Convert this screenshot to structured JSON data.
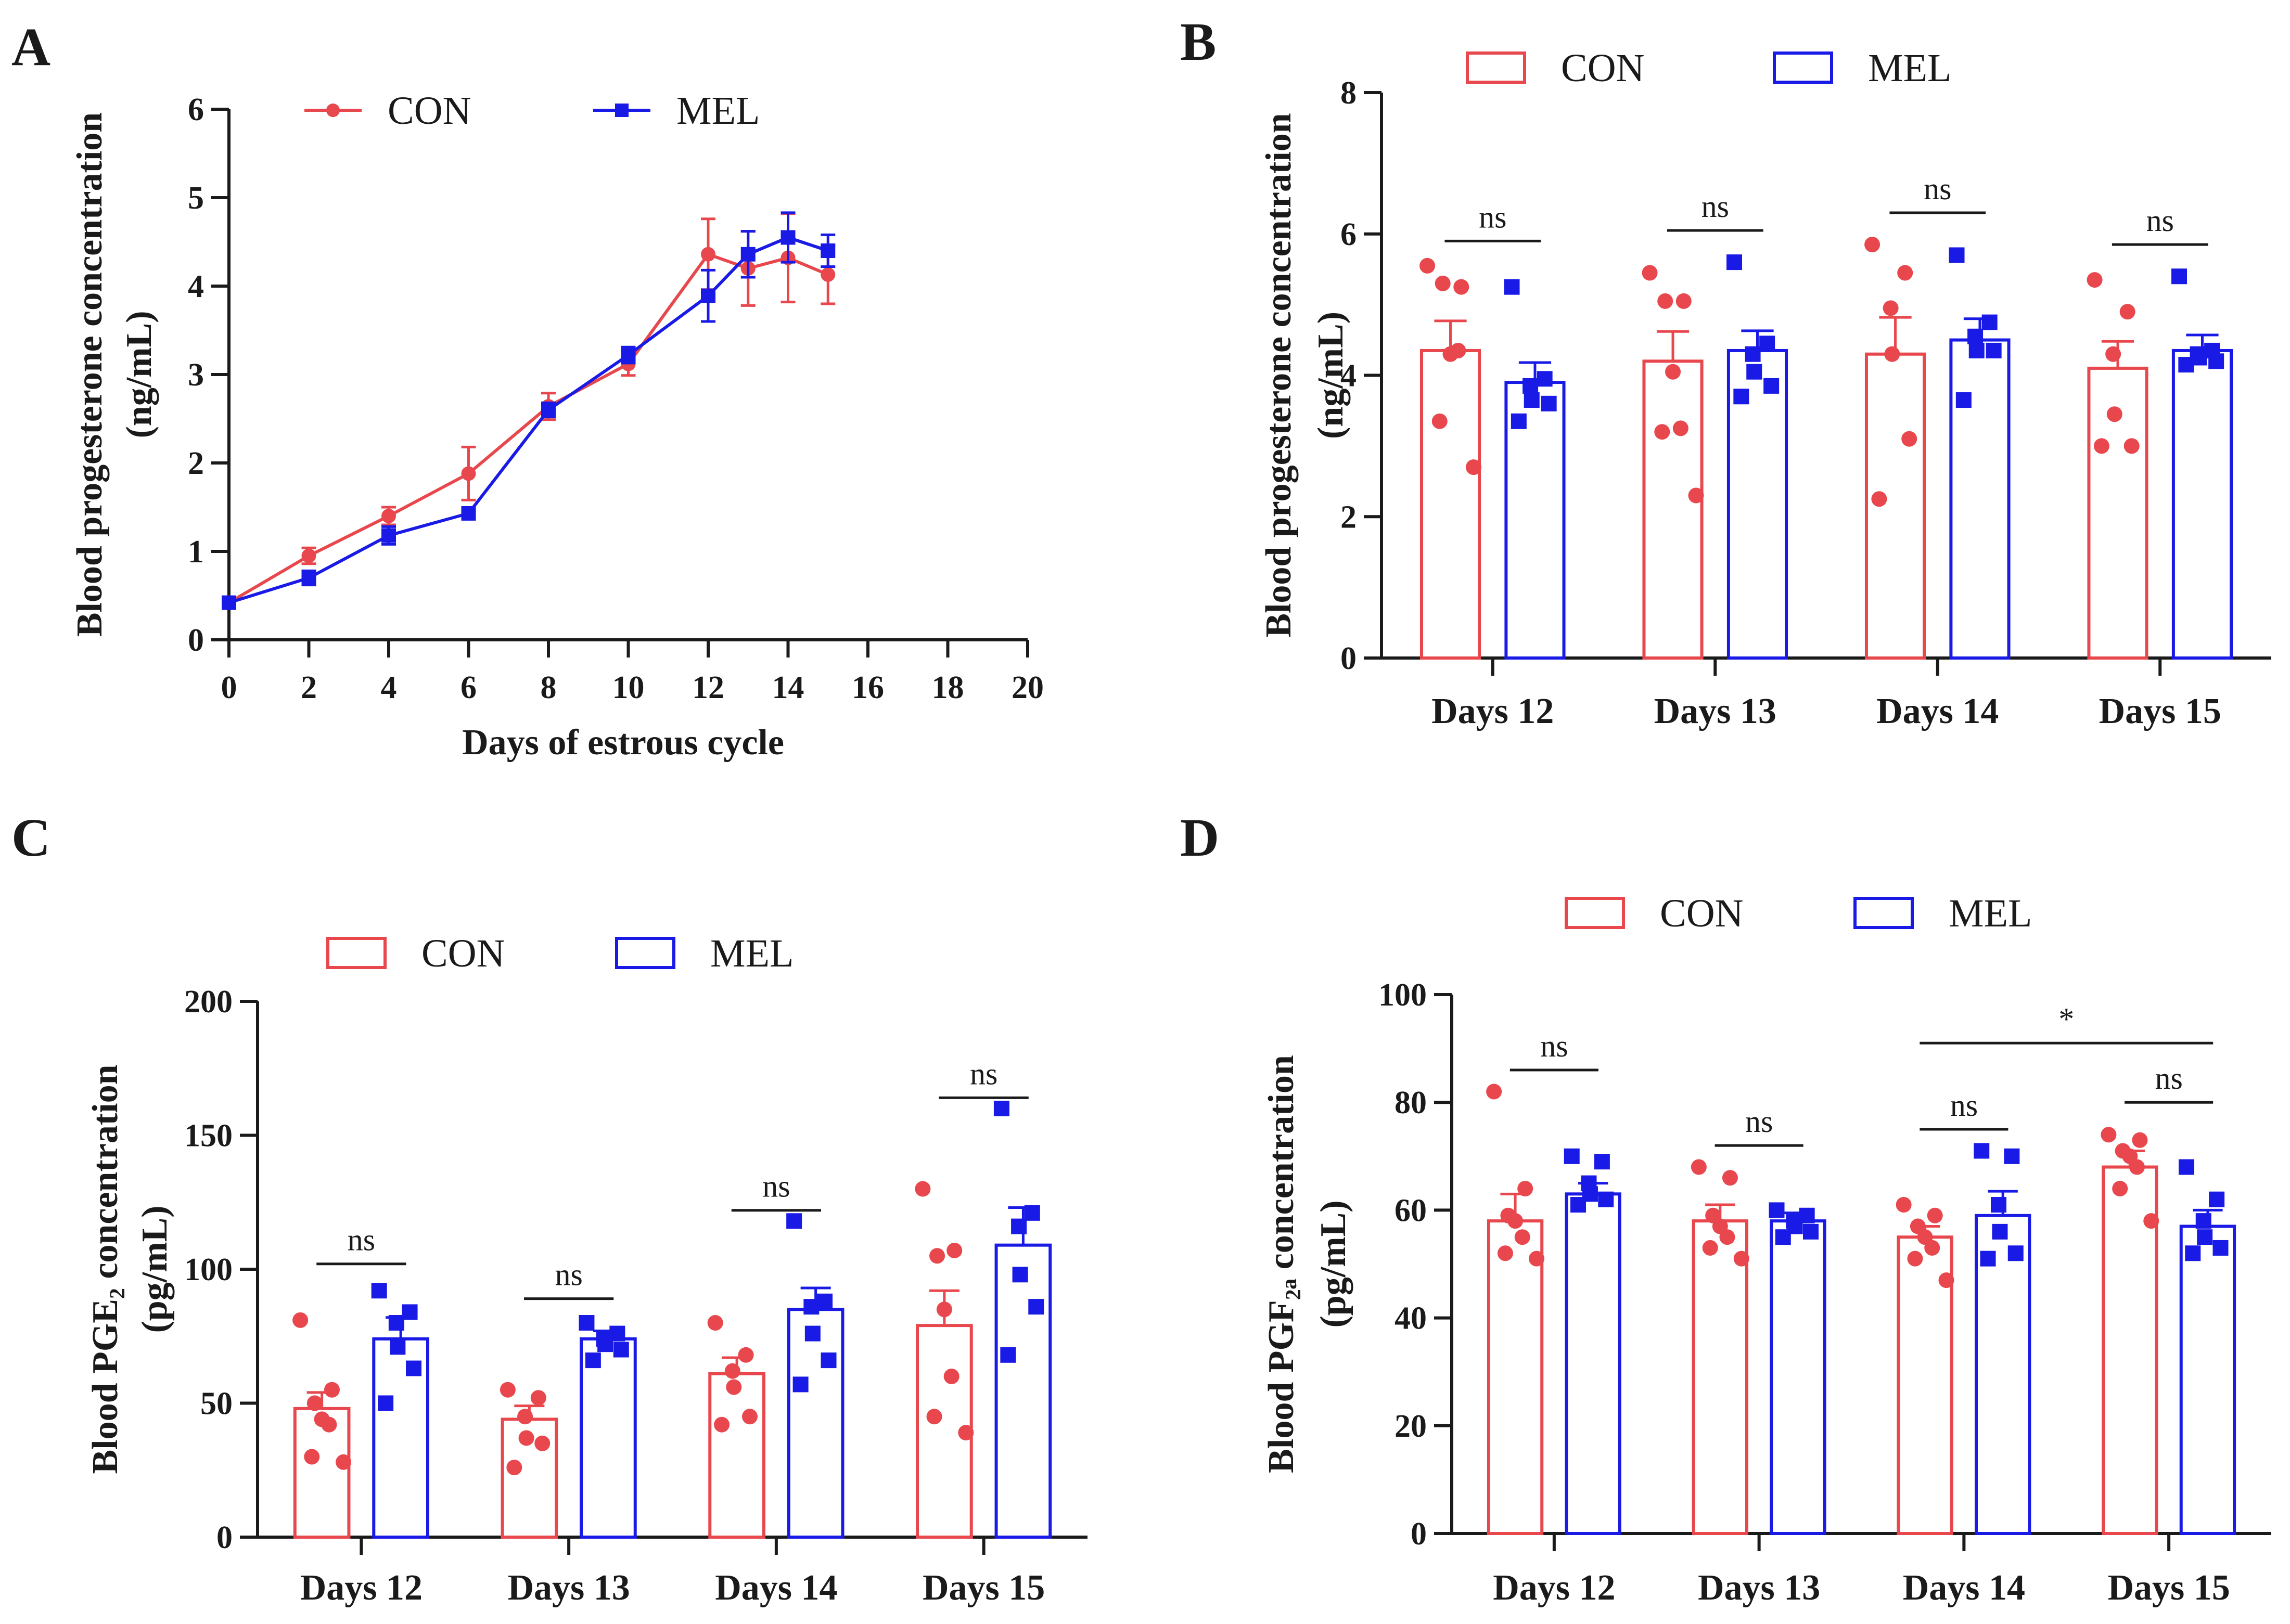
{
  "chart_data": [
    {
      "panel": "A",
      "type": "line",
      "xlabel": "Days of estrous  cycle",
      "ylabel": [
        "Blood progesterone concentration",
        "(ng/mL)"
      ],
      "xlim": [
        0,
        20
      ],
      "ylim": [
        0,
        6
      ],
      "xticks": [
        0,
        2,
        4,
        6,
        8,
        10,
        12,
        14,
        16,
        18,
        20
      ],
      "yticks": [
        0,
        1,
        2,
        3,
        4,
        5,
        6
      ],
      "legend": [
        "CON",
        "MEL"
      ],
      "series": [
        {
          "name": "CON",
          "color": "#e8484d",
          "marker": "circle",
          "x": [
            0,
            2,
            4,
            6,
            8,
            10,
            12,
            13,
            14,
            15
          ],
          "y": [
            0.42,
            0.95,
            1.4,
            1.88,
            2.64,
            3.12,
            4.36,
            4.2,
            4.32,
            4.13
          ],
          "err": [
            0.06,
            0.09,
            0.1,
            0.3,
            0.15,
            0.13,
            0.4,
            0.42,
            0.5,
            0.33
          ]
        },
        {
          "name": "MEL",
          "color": "#1a1ae6",
          "marker": "square",
          "x": [
            0,
            2,
            4,
            6,
            8,
            10,
            12,
            13,
            14,
            15
          ],
          "y": [
            0.42,
            0.7,
            1.18,
            1.43,
            2.6,
            3.22,
            3.89,
            4.36,
            4.55,
            4.4
          ],
          "err": [
            0.05,
            0.08,
            0.1,
            0.05,
            0.08,
            0.09,
            0.29,
            0.26,
            0.28,
            0.18
          ]
        }
      ]
    },
    {
      "panel": "B",
      "type": "bar",
      "ylabel": [
        "Blood progesterone concentration",
        "(ng/mL)"
      ],
      "ylim": [
        0,
        8
      ],
      "yticks": [
        0,
        2,
        4,
        6,
        8
      ],
      "categories": [
        "Days 12",
        "Days 13",
        "Days 14",
        "Days 15"
      ],
      "legend": [
        "CON",
        "MEL"
      ],
      "series": [
        {
          "name": "CON",
          "color": "#e8484d",
          "marker": "circle",
          "values": [
            4.35,
            4.2,
            4.3,
            4.1
          ],
          "err": [
            0.42,
            0.42,
            0.52,
            0.38
          ],
          "points": [
            [
              5.55,
              5.25,
              5.3,
              4.3,
              4.35,
              3.35,
              2.7
            ],
            [
              5.45,
              5.05,
              5.05,
              4.05,
              3.25,
              3.2,
              2.3
            ],
            [
              5.85,
              5.45,
              4.95,
              4.3,
              3.1,
              2.25
            ],
            [
              5.35,
              4.9,
              4.3,
              3.45,
              3.0,
              3.0
            ]
          ]
        },
        {
          "name": "MEL",
          "color": "#1a1ae6",
          "marker": "square",
          "values": [
            3.9,
            4.35,
            4.5,
            4.35
          ],
          "err": [
            0.28,
            0.28,
            0.3,
            0.22
          ],
          "points": [
            [
              5.25,
              3.95,
              3.85,
              3.65,
              3.6,
              3.35
            ],
            [
              5.6,
              4.45,
              4.3,
              4.05,
              3.85,
              3.7
            ],
            [
              5.7,
              4.75,
              4.55,
              4.35,
              4.35,
              3.65
            ],
            [
              5.4,
              4.35,
              4.3,
              4.25,
              4.2,
              4.15
            ]
          ]
        }
      ],
      "significance": [
        {
          "label": "ns",
          "from": "Days 12",
          "to": "Days 12",
          "y": 5.9
        },
        {
          "label": "ns",
          "from": "Days 13",
          "to": "Days 13",
          "y": 6.05
        },
        {
          "label": "ns",
          "from": "Days 14",
          "to": "Days 14",
          "y": 6.3
        },
        {
          "label": "ns",
          "from": "Days 15",
          "to": "Days 15",
          "y": 5.85
        }
      ]
    },
    {
      "panel": "C",
      "type": "bar",
      "ylabel": [
        "Blood PGE₂ concentration",
        "(pg/mL)"
      ],
      "ylim": [
        0,
        200
      ],
      "yticks": [
        0,
        50,
        100,
        150,
        200
      ],
      "categories": [
        "Days 12",
        "Days 13",
        "Days 14",
        "Days 15"
      ],
      "legend": [
        "CON",
        "MEL"
      ],
      "series": [
        {
          "name": "CON",
          "color": "#e8484d",
          "marker": "circle",
          "values": [
            48,
            44,
            61,
            79
          ],
          "err": [
            6,
            5,
            6,
            13
          ],
          "points": [
            [
              81,
              55,
              50,
              44,
              42,
              30,
              28
            ],
            [
              55,
              52,
              45,
              37,
              35,
              26
            ],
            [
              80,
              68,
              62,
              56,
              45,
              42
            ],
            [
              130,
              107,
              105,
              85,
              60,
              45,
              39
            ]
          ]
        },
        {
          "name": "MEL",
          "color": "#1a1ae6",
          "marker": "square",
          "values": [
            74,
            74,
            85,
            109
          ],
          "err": [
            8,
            3,
            8,
            14
          ],
          "points": [
            [
              92,
              84,
              80,
              71,
              63,
              50
            ],
            [
              80,
              76,
              74,
              72,
              70,
              66
            ],
            [
              118,
              88,
              86,
              76,
              66,
              57
            ],
            [
              160,
              121,
              116,
              98,
              86,
              68
            ]
          ]
        }
      ],
      "significance": [
        {
          "label": "ns",
          "from": "Days 12",
          "to": "Days 12",
          "y": 102
        },
        {
          "label": "ns",
          "from": "Days 13",
          "to": "Days 13",
          "y": 89
        },
        {
          "label": "ns",
          "from": "Days 14",
          "to": "Days 14",
          "y": 122
        },
        {
          "label": "ns",
          "from": "Days 15",
          "to": "Days 15",
          "y": 164
        }
      ]
    },
    {
      "panel": "D",
      "type": "bar",
      "ylabel": [
        "Blood PGF₂ₐ concentration",
        "(pg/mL)"
      ],
      "ylim": [
        0,
        100
      ],
      "yticks": [
        0,
        20,
        40,
        60,
        80,
        100
      ],
      "categories": [
        "Days 12",
        "Days 13",
        "Days 14",
        "Days 15"
      ],
      "legend": [
        "CON",
        "MEL"
      ],
      "series": [
        {
          "name": "CON",
          "color": "#e8484d",
          "marker": "circle",
          "values": [
            58,
            58,
            55,
            68
          ],
          "err": [
            5,
            3,
            2,
            3
          ],
          "points": [
            [
              82,
              64,
              59,
              58,
              55,
              52,
              51
            ],
            [
              68,
              66,
              59,
              57,
              55,
              53,
              51
            ],
            [
              61,
              59,
              57,
              55,
              53,
              51,
              47
            ],
            [
              74,
              73,
              71,
              70,
              68,
              64,
              58
            ]
          ]
        },
        {
          "name": "MEL",
          "color": "#1a1ae6",
          "marker": "square",
          "values": [
            63,
            58,
            59,
            57
          ],
          "err": [
            2,
            1.5,
            4.5,
            3
          ],
          "points": [
            [
              70,
              69,
              65,
              63,
              62,
              61
            ],
            [
              60,
              59,
              58,
              57,
              56,
              55
            ],
            [
              71,
              70,
              61,
              56,
              52,
              51
            ],
            [
              68,
              62,
              58,
              55,
              53,
              52
            ]
          ]
        }
      ],
      "significance": [
        {
          "label": "ns",
          "from": "Days 12",
          "to": "Days 12",
          "y": 86
        },
        {
          "label": "ns",
          "from": "Days 13",
          "to": "Days 13",
          "y": 72
        },
        {
          "label": "ns",
          "from": "Days 14",
          "to": "Days 14",
          "y": 75
        },
        {
          "label": "ns",
          "from": "Days 15",
          "to": "Days 15",
          "y": 80
        },
        {
          "label": "*",
          "from": "Days 14",
          "to": "Days 15",
          "y": 91
        }
      ]
    }
  ]
}
